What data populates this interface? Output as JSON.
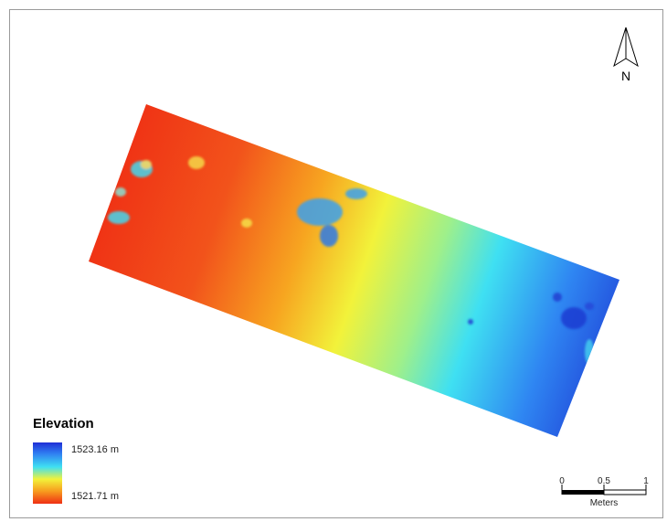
{
  "legend": {
    "title": "Elevation",
    "max_label": "1523.16 m",
    "min_label": "1521.71 m",
    "ramp_colors": [
      "#1f2fd6",
      "#2f7ef2",
      "#3fe0f2",
      "#f2f23a",
      "#f79a1e",
      "#ef2f14"
    ]
  },
  "scale_bar": {
    "ticks": [
      "0",
      "0.5",
      "1"
    ],
    "unit": "Meters"
  },
  "north_arrow": {
    "letter": "N",
    "icon": "north-arrow-icon"
  },
  "raster": {
    "description_colors": {
      "low": "#ef2f14",
      "mid": "#f2f23a",
      "high": "#1f2fd6"
    }
  }
}
